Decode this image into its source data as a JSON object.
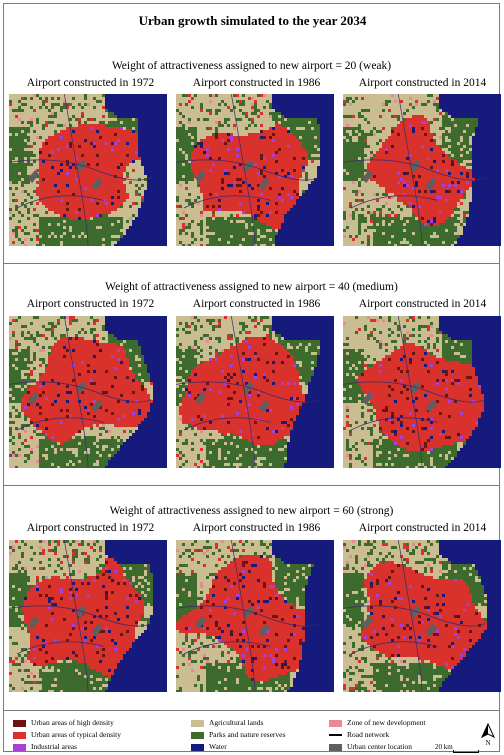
{
  "title": "Urban growth simulated to the year 2034",
  "sections": [
    {
      "weight_label": "Weight of attractiveness assigned to new airport = 20 (weak)",
      "panels": [
        {
          "caption": "Airport constructed in 1972",
          "urban_density": 0.46
        },
        {
          "caption": "Airport constructed in 1986",
          "urban_density": 0.5
        },
        {
          "caption": "Airport constructed in 2014",
          "urban_density": 0.44
        }
      ]
    },
    {
      "weight_label": "Weight of attractiveness assigned to new airport = 40 (medium)",
      "panels": [
        {
          "caption": "Airport constructed in 1972",
          "urban_density": 0.52
        },
        {
          "caption": "Airport constructed in 1986",
          "urban_density": 0.55
        },
        {
          "caption": "Airport constructed in 2014",
          "urban_density": 0.5
        }
      ]
    },
    {
      "weight_label": "Weight of attractiveness assigned to new airport = 60 (strong)",
      "panels": [
        {
          "caption": "Airport constructed in 1972",
          "urban_density": 0.58
        },
        {
          "caption": "Airport constructed in 1986",
          "urban_density": 0.6
        },
        {
          "caption": "Airport constructed in 2014",
          "urban_density": 0.56
        }
      ]
    }
  ],
  "legend": {
    "items": [
      {
        "label": "Urban areas of high density",
        "color": "#6b1410",
        "type": "swatch"
      },
      {
        "label": "Urban areas of typical density",
        "color": "#d9312c",
        "type": "swatch"
      },
      {
        "label": "Industrial areas",
        "color": "#a83fd6",
        "type": "swatch"
      },
      {
        "label": "Agricultural lands",
        "color": "#cbbd92",
        "type": "swatch"
      },
      {
        "label": "Parks and nature reserves",
        "color": "#3d6b2e",
        "type": "swatch"
      },
      {
        "label": "Water",
        "color": "#161a7d",
        "type": "swatch"
      },
      {
        "label": "Zone of new development",
        "color": "#e7899a",
        "type": "swatch"
      },
      {
        "label": "Road network",
        "color": "#000000",
        "type": "line"
      },
      {
        "label": "Urban center location",
        "color": "#5f5f5f",
        "type": "swatch"
      }
    ],
    "scale_label": "20 km",
    "north_label": "N"
  }
}
